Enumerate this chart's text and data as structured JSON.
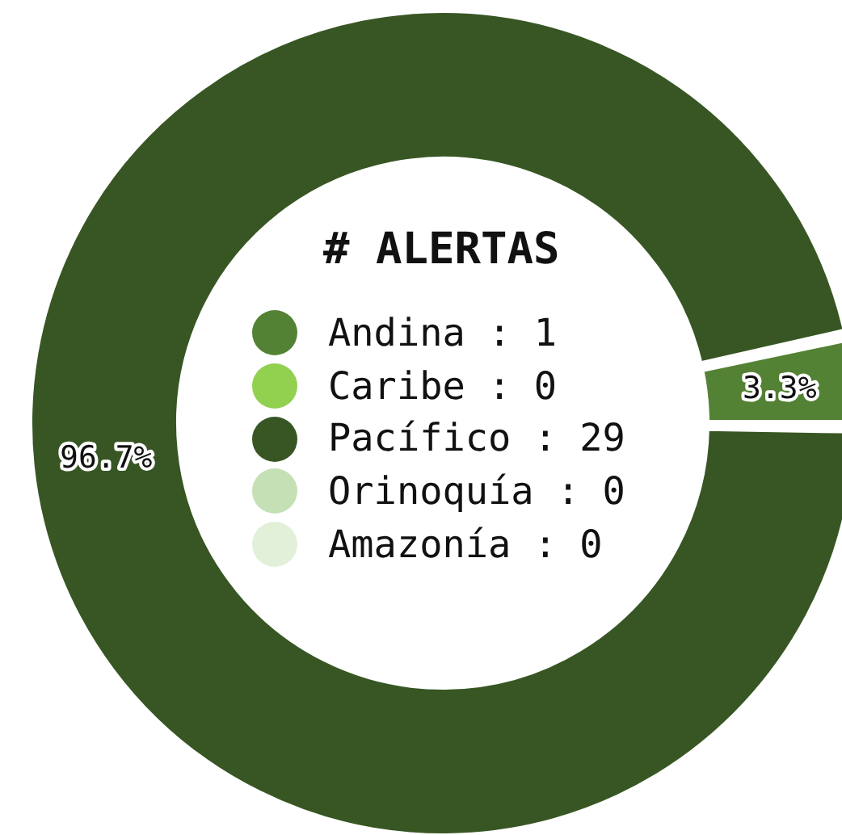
{
  "chart_data": {
    "type": "donut",
    "legend_title": "# ALERTAS",
    "legend": "center",
    "categories": [
      "Andina : 1",
      "Caribe : 0",
      "Pacífico : 29",
      "Orinoquía : 0",
      "Amazonía : 0"
    ],
    "values": [
      3.3,
      0,
      96.7,
      0,
      0
    ],
    "colors": [
      "#548235",
      "#92d050",
      "#375623",
      "#c5e0b4",
      "#e2f0d9"
    ],
    "value_labels": [
      "3.3%",
      null,
      "96.7%",
      null,
      null
    ]
  }
}
